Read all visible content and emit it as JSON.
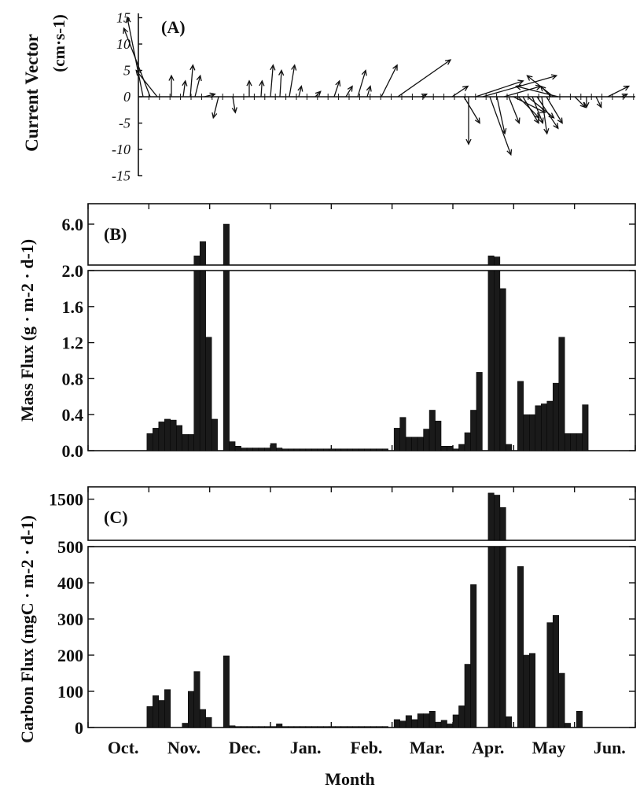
{
  "chart_data": [
    {
      "type": "vector",
      "panel_label": "(A)",
      "ylabel_line1": "Current Vector",
      "ylabel_line2": "(cm·s-1)",
      "yticks": [
        "15",
        "10",
        "5",
        "0",
        "-5",
        "-10",
        "-15"
      ],
      "ylim": [
        -15,
        15
      ],
      "vectors": [
        {
          "t": 0.2,
          "u": -3,
          "v": 15
        },
        {
          "t": 0.5,
          "u": -5,
          "v": 13
        },
        {
          "t": 0.8,
          "u": -4,
          "v": 5
        },
        {
          "t": 1.4,
          "u": 0,
          "v": 4
        },
        {
          "t": 1.9,
          "u": 0.4,
          "v": 3
        },
        {
          "t": 2.2,
          "u": 0.5,
          "v": 6
        },
        {
          "t": 2.4,
          "u": 1,
          "v": 4
        },
        {
          "t": 2.8,
          "u": 2,
          "v": 0.5
        },
        {
          "t": 3.4,
          "u": -1,
          "v": -4
        },
        {
          "t": 4.0,
          "u": 0.5,
          "v": -3
        },
        {
          "t": 4.7,
          "u": 0,
          "v": 3
        },
        {
          "t": 5.2,
          "u": 0.2,
          "v": 3
        },
        {
          "t": 5.6,
          "u": 0.5,
          "v": 6
        },
        {
          "t": 6.0,
          "u": 0.3,
          "v": 5
        },
        {
          "t": 6.4,
          "u": 1,
          "v": 6
        },
        {
          "t": 6.8,
          "u": 0.5,
          "v": 2
        },
        {
          "t": 7.5,
          "u": 1,
          "v": 1
        },
        {
          "t": 8.3,
          "u": 1,
          "v": 3
        },
        {
          "t": 8.8,
          "u": 1.2,
          "v": 2
        },
        {
          "t": 9.3,
          "u": 1.5,
          "v": 5
        },
        {
          "t": 9.7,
          "u": 0.6,
          "v": 2
        },
        {
          "t": 10.3,
          "u": 3,
          "v": 6
        },
        {
          "t": 11.0,
          "u": 10,
          "v": 7
        },
        {
          "t": 12.0,
          "u": 1,
          "v": 0.5
        },
        {
          "t": 13.3,
          "u": 3,
          "v": 2
        },
        {
          "t": 13.8,
          "u": 3,
          "v": -5
        },
        {
          "t": 14.0,
          "u": 0,
          "v": -9
        },
        {
          "t": 14.3,
          "u": 9,
          "v": 3
        },
        {
          "t": 14.6,
          "u": 14,
          "v": 4
        },
        {
          "t": 14.9,
          "u": 4,
          "v": -11
        },
        {
          "t": 15.2,
          "u": 1.5,
          "v": -7
        },
        {
          "t": 15.5,
          "u": 7,
          "v": 2
        },
        {
          "t": 15.7,
          "u": 2,
          "v": -5
        },
        {
          "t": 15.9,
          "u": 6,
          "v": -3
        },
        {
          "t": 16.1,
          "u": 4,
          "v": -4
        },
        {
          "t": 16.3,
          "u": 3,
          "v": -5
        },
        {
          "t": 16.5,
          "u": 5,
          "v": -4
        },
        {
          "t": 16.7,
          "u": 2,
          "v": -5
        },
        {
          "t": 16.9,
          "u": 4,
          "v": -6
        },
        {
          "t": 17.1,
          "u": 1,
          "v": -7
        },
        {
          "t": 17.3,
          "u": 3,
          "v": -5
        },
        {
          "t": 17.5,
          "u": -2,
          "v": 2
        },
        {
          "t": 17.6,
          "u": -5,
          "v": 4
        },
        {
          "t": 17.8,
          "u": -8,
          "v": 2
        },
        {
          "t": 18.5,
          "u": 2,
          "v": -2
        },
        {
          "t": 19.0,
          "u": 0,
          "v": -2
        },
        {
          "t": 19.4,
          "u": 1,
          "v": -2
        },
        {
          "t": 19.9,
          "u": 4,
          "v": 2
        },
        {
          "t": 20.5,
          "u": 1,
          "v": 0.5
        }
      ]
    },
    {
      "type": "bar",
      "panel_label": "(B)",
      "ylabel": "Mass Flux (g · m-2 · d-1)",
      "yticks_upper": [
        "6.0"
      ],
      "yticks_lower": [
        "2.0",
        "1.6",
        "1.2",
        "0.8",
        "0.4",
        "0.0"
      ],
      "ylim_lower": [
        0,
        2.0
      ],
      "ylim_upper": [
        2.0,
        8.0
      ],
      "values": [
        0,
        0,
        0,
        0,
        0,
        0,
        0,
        0,
        0,
        0,
        0.19,
        0.25,
        0.32,
        0.35,
        0.34,
        0.28,
        0.18,
        0.18,
        2.9,
        4.3,
        1.26,
        0.35,
        0,
        6.0,
        0.1,
        0.05,
        0.03,
        0.03,
        0.03,
        0.03,
        0.03,
        0.08,
        0.03,
        0.02,
        0.02,
        0.02,
        0.02,
        0.02,
        0.02,
        0.02,
        0.02,
        0.02,
        0.02,
        0.02,
        0.02,
        0.02,
        0.02,
        0.02,
        0.02,
        0.02,
        0.02,
        0,
        0.25,
        0.37,
        0.15,
        0.15,
        0.15,
        0.24,
        0.45,
        0.33,
        0.05,
        0.05,
        0.02,
        0.07,
        0.2,
        0.45,
        0.87,
        0,
        2.9,
        2.8,
        1.8,
        0.07,
        0,
        0.77,
        0.4,
        0.4,
        0.5,
        0.52,
        0.55,
        0.75,
        1.26,
        0.19,
        0.19,
        0.19,
        0.51,
        0,
        0,
        0,
        0,
        0,
        0,
        0,
        0
      ]
    },
    {
      "type": "bar",
      "panel_label": "(C)",
      "ylabel": "Carbon Flux (mgC · m-2 · d-1)",
      "yticks_upper": [
        "1500"
      ],
      "yticks_lower": [
        "500",
        "400",
        "300",
        "200",
        "100",
        "0"
      ],
      "ylim_lower": [
        0,
        500
      ],
      "ylim_upper": [
        500,
        1800
      ],
      "values": [
        0,
        0,
        0,
        0,
        0,
        0,
        0,
        0,
        0,
        0,
        58,
        88,
        75,
        105,
        0,
        0,
        12,
        100,
        155,
        50,
        28,
        0,
        0,
        198,
        5,
        3,
        3,
        3,
        3,
        3,
        3,
        3,
        10,
        3,
        3,
        3,
        3,
        3,
        3,
        3,
        3,
        3,
        3,
        3,
        3,
        3,
        3,
        3,
        3,
        3,
        3,
        0,
        22,
        18,
        33,
        22,
        38,
        38,
        45,
        15,
        20,
        10,
        35,
        60,
        175,
        395,
        0,
        0,
        1650,
        1600,
        1300,
        30,
        0,
        445,
        200,
        205,
        0,
        0,
        290,
        310,
        150,
        12,
        0,
        45,
        0,
        0,
        0,
        0,
        0,
        0,
        0,
        0,
        0
      ]
    }
  ],
  "x_axis": {
    "months": [
      "Oct.",
      "Nov.",
      "Dec.",
      "Jan.",
      "Feb.",
      "Mar.",
      "Apr.",
      "May",
      "Jun."
    ],
    "xlabel": "Month"
  }
}
